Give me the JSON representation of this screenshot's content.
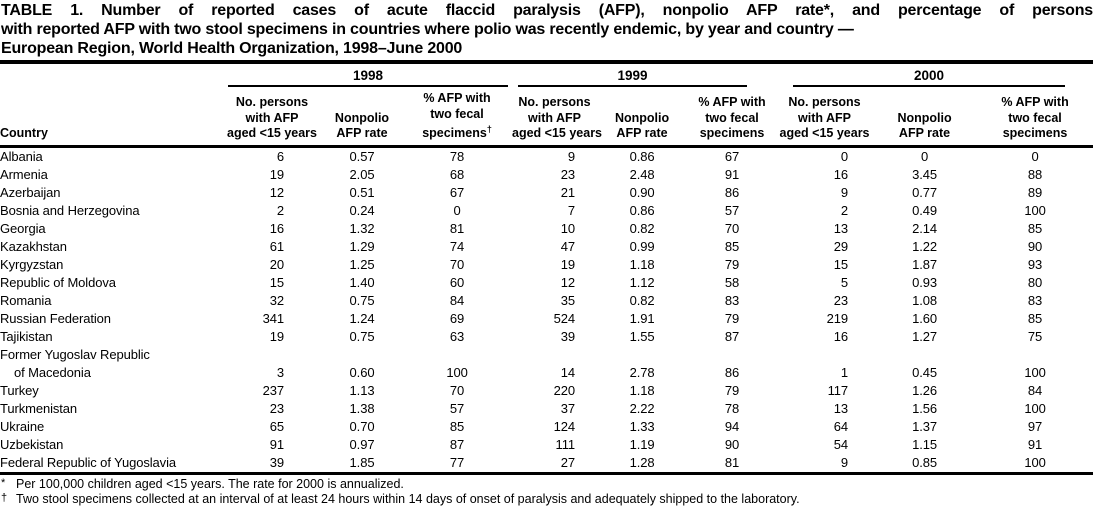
{
  "title": {
    "line1": "TABLE 1. Number of reported cases of acute flaccid paralysis (AFP), nonpolio AFP rate*, and percentage of persons",
    "line2": "with reported AFP with two stool specimens in countries where polio was recently endemic, by year and country —",
    "line3": "European Region, World Health Organization, 1998–June 2000"
  },
  "table": {
    "country_header": "Country",
    "year_groups": [
      {
        "year": "1998",
        "persons_lines": [
          "No. persons",
          "with AFP",
          "aged <15 years"
        ],
        "rate_lines": [
          "Nonpolio",
          "AFP rate"
        ],
        "specimens_lines": [
          "% AFP with",
          "two fecal",
          "specimens"
        ],
        "specimens_marker": "†"
      },
      {
        "year": "1999",
        "persons_lines": [
          "No. persons",
          "with AFP",
          "aged <15 years"
        ],
        "rate_lines": [
          "Nonpolio",
          "AFP rate"
        ],
        "specimens_lines": [
          "% AFP with",
          "two fecal",
          "specimens"
        ]
      },
      {
        "year": "2000",
        "persons_lines": [
          "No. persons",
          "with AFP",
          "aged <15 years"
        ],
        "rate_lines": [
          "Nonpolio",
          "AFP rate"
        ],
        "specimens_lines": [
          "% AFP with",
          "two fecal",
          "specimens"
        ]
      }
    ],
    "rows": [
      {
        "country": "Albania",
        "y1998": [
          "6",
          "0.57",
          "78"
        ],
        "y1999": [
          "9",
          "0.86",
          "67"
        ],
        "y2000": [
          "0",
          "0",
          "0"
        ]
      },
      {
        "country": "Armenia",
        "y1998": [
          "19",
          "2.05",
          "68"
        ],
        "y1999": [
          "23",
          "2.48",
          "91"
        ],
        "y2000": [
          "16",
          "3.45",
          "88"
        ]
      },
      {
        "country": "Azerbaijan",
        "y1998": [
          "12",
          "0.51",
          "67"
        ],
        "y1999": [
          "21",
          "0.90",
          "86"
        ],
        "y2000": [
          "9",
          "0.77",
          "89"
        ]
      },
      {
        "country": "Bosnia and Herzegovina",
        "y1998": [
          "2",
          "0.24",
          "0"
        ],
        "y1999": [
          "7",
          "0.86",
          "57"
        ],
        "y2000": [
          "2",
          "0.49",
          "100"
        ]
      },
      {
        "country": "Georgia",
        "y1998": [
          "16",
          "1.32",
          "81"
        ],
        "y1999": [
          "10",
          "0.82",
          "70"
        ],
        "y2000": [
          "13",
          "2.14",
          "85"
        ]
      },
      {
        "country": "Kazakhstan",
        "y1998": [
          "61",
          "1.29",
          "74"
        ],
        "y1999": [
          "47",
          "0.99",
          "85"
        ],
        "y2000": [
          "29",
          "1.22",
          "90"
        ]
      },
      {
        "country": "Kyrgyzstan",
        "y1998": [
          "20",
          "1.25",
          "70"
        ],
        "y1999": [
          "19",
          "1.18",
          "79"
        ],
        "y2000": [
          "15",
          "1.87",
          "93"
        ]
      },
      {
        "country": "Republic of Moldova",
        "y1998": [
          "15",
          "1.40",
          "60"
        ],
        "y1999": [
          "12",
          "1.12",
          "58"
        ],
        "y2000": [
          "5",
          "0.93",
          "80"
        ]
      },
      {
        "country": "Romania",
        "y1998": [
          "32",
          "0.75",
          "84"
        ],
        "y1999": [
          "35",
          "0.82",
          "83"
        ],
        "y2000": [
          "23",
          "1.08",
          "83"
        ]
      },
      {
        "country": "Russian Federation",
        "y1998": [
          "341",
          "1.24",
          "69"
        ],
        "y1999": [
          "524",
          "1.91",
          "79"
        ],
        "y2000": [
          "219",
          "1.60",
          "85"
        ]
      },
      {
        "country": "Tajikistan",
        "y1998": [
          "19",
          "0.75",
          "63"
        ],
        "y1999": [
          "39",
          "1.55",
          "87"
        ],
        "y2000": [
          "16",
          "1.27",
          "75"
        ]
      },
      {
        "country": "Former Yugoslav Republic",
        "country_line2": "of Macedonia",
        "y1998": [
          "3",
          "0.60",
          "100"
        ],
        "y1999": [
          "14",
          "2.78",
          "86"
        ],
        "y2000": [
          "1",
          "0.45",
          "100"
        ]
      },
      {
        "country": "Turkey",
        "y1998": [
          "237",
          "1.13",
          "70"
        ],
        "y1999": [
          "220",
          "1.18",
          "79"
        ],
        "y2000": [
          "117",
          "1.26",
          "84"
        ]
      },
      {
        "country": "Turkmenistan",
        "y1998": [
          "23",
          "1.38",
          "57"
        ],
        "y1999": [
          "37",
          "2.22",
          "78"
        ],
        "y2000": [
          "13",
          "1.56",
          "100"
        ]
      },
      {
        "country": "Ukraine",
        "y1998": [
          "65",
          "0.70",
          "85"
        ],
        "y1999": [
          "124",
          "1.33",
          "94"
        ],
        "y2000": [
          "64",
          "1.37",
          "97"
        ]
      },
      {
        "country": "Uzbekistan",
        "y1998": [
          "91",
          "0.97",
          "87"
        ],
        "y1999": [
          "111",
          "1.19",
          "90"
        ],
        "y2000": [
          "54",
          "1.15",
          "91"
        ]
      },
      {
        "country": "Federal Republic of Yugoslavia",
        "y1998": [
          "39",
          "1.85",
          "77"
        ],
        "y1999": [
          "27",
          "1.28",
          "81"
        ],
        "y2000": [
          "9",
          "0.85",
          "100"
        ]
      }
    ]
  },
  "footnotes": [
    {
      "marker": "*",
      "text": "Per 100,000 children aged <15 years. The rate for 2000 is annualized."
    },
    {
      "marker": "†",
      "text": "Two stool specimens collected at an interval of at least 24 hours within 14 days of onset of paralysis and adequately shipped to the laboratory."
    }
  ]
}
